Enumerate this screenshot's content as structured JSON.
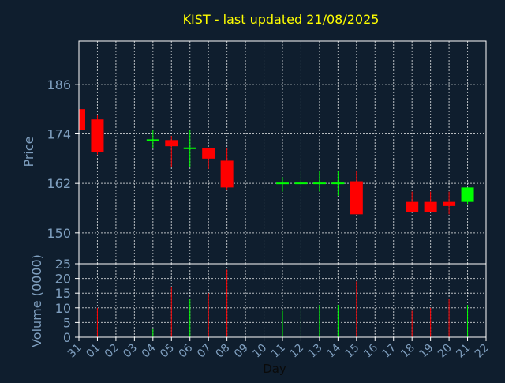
{
  "chart_data": [
    {
      "type": "candlestick",
      "title": "KIST - last updated 21/08/2025",
      "ylabel": "Price",
      "ylim": [
        142.5,
        196.5
      ],
      "yticks": [
        150,
        162,
        174,
        186
      ],
      "grid": true,
      "up_color": "#00ff00",
      "down_color": "#ff0000",
      "candles": [
        {
          "day": "31",
          "open": 180.0,
          "high": 180.0,
          "close": 175.0,
          "low": 175.0
        },
        {
          "day": "01",
          "open": 177.5,
          "high": 178.5,
          "close": 169.5,
          "low": 169.0
        },
        {
          "day": "04",
          "open": 172.5,
          "high": 175.0,
          "close": 172.5,
          "low": 170.5
        },
        {
          "day": "05",
          "open": 172.5,
          "high": 173.5,
          "close": 171.0,
          "low": 166.0
        },
        {
          "day": "06",
          "open": 170.5,
          "high": 175.0,
          "close": 170.5,
          "low": 166.0
        },
        {
          "day": "07",
          "open": 170.5,
          "high": 170.5,
          "close": 168.0,
          "low": 165.5
        },
        {
          "day": "08",
          "open": 167.5,
          "high": 170.5,
          "close": 161.0,
          "low": 160.5
        },
        {
          "day": "11",
          "open": 162.0,
          "high": 163.5,
          "close": 162.0,
          "low": 160.0
        },
        {
          "day": "12",
          "open": 162.0,
          "high": 165.0,
          "close": 162.0,
          "low": 160.0
        },
        {
          "day": "13",
          "open": 162.0,
          "high": 165.0,
          "close": 162.0,
          "low": 160.0
        },
        {
          "day": "14",
          "open": 162.0,
          "high": 165.0,
          "close": 162.0,
          "low": 159.0
        },
        {
          "day": "15",
          "open": 162.5,
          "high": 165.0,
          "close": 154.5,
          "low": 154.5
        },
        {
          "day": "18",
          "open": 157.5,
          "high": 160.0,
          "close": 155.0,
          "low": 155.0
        },
        {
          "day": "19",
          "open": 157.5,
          "high": 160.0,
          "close": 155.0,
          "low": 155.0
        },
        {
          "day": "20",
          "open": 157.5,
          "high": 160.0,
          "close": 156.5,
          "low": 154.5
        },
        {
          "day": "21",
          "open": 157.5,
          "high": 161.0,
          "close": 161.0,
          "low": 157.0
        }
      ]
    },
    {
      "type": "bar",
      "ylabel": "Volume (0000)",
      "xlabel": "Day",
      "ylim": [
        0,
        25
      ],
      "yticks": [
        0,
        5,
        10,
        15,
        20,
        25
      ],
      "grid": true,
      "categories": [
        "31",
        "01",
        "02",
        "03",
        "04",
        "05",
        "06",
        "07",
        "08",
        "09",
        "10",
        "11",
        "12",
        "13",
        "14",
        "15",
        "16",
        "17",
        "18",
        "19",
        "20",
        "21",
        "22"
      ],
      "volumes": [
        {
          "day": "01",
          "value": 10,
          "color": "#ff0000"
        },
        {
          "day": "04",
          "value": 3,
          "color": "#00ff00"
        },
        {
          "day": "05",
          "value": 17,
          "color": "#ff0000"
        },
        {
          "day": "06",
          "value": 13,
          "color": "#00ff00"
        },
        {
          "day": "07",
          "value": 15,
          "color": "#ff0000"
        },
        {
          "day": "08",
          "value": 23,
          "color": "#ff0000"
        },
        {
          "day": "11",
          "value": 9,
          "color": "#00ff00"
        },
        {
          "day": "12",
          "value": 10,
          "color": "#00ff00"
        },
        {
          "day": "13",
          "value": 11,
          "color": "#00ff00"
        },
        {
          "day": "14",
          "value": 11,
          "color": "#00ff00"
        },
        {
          "day": "15",
          "value": 19,
          "color": "#ff0000"
        },
        {
          "day": "18",
          "value": 9,
          "color": "#ff0000"
        },
        {
          "day": "19",
          "value": 10,
          "color": "#ff0000"
        },
        {
          "day": "20",
          "value": 13,
          "color": "#ff0000"
        },
        {
          "day": "21",
          "value": 11,
          "color": "#00ff00"
        }
      ]
    }
  ],
  "colors": {
    "background": "#0f1e2e",
    "title": "#ffff00",
    "axis_text": "#7f9fbf",
    "axis_line": "#ffffff",
    "grid": "#ffffff"
  }
}
